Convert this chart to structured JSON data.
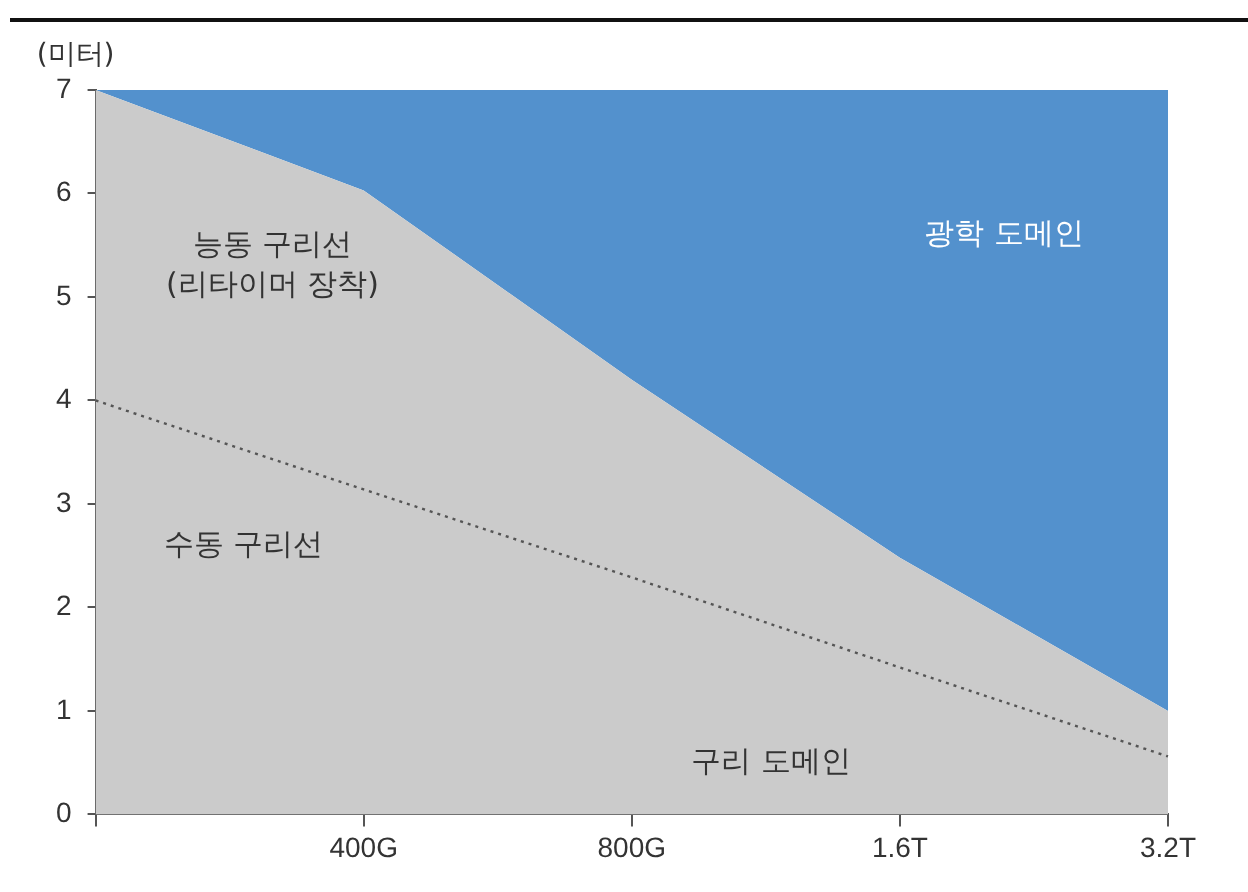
{
  "chart_data": {
    "type": "area",
    "ylabel": "(미터)",
    "categories": [
      null,
      "400G",
      "800G",
      "1.6T",
      "3.2T"
    ],
    "ylim": [
      0,
      7
    ],
    "yticks": [
      0,
      1,
      2,
      3,
      4,
      5,
      6,
      7
    ],
    "grid": false,
    "legend": false,
    "series": [
      {
        "type": "area",
        "color": "#cbcbcb",
        "values": [
          7,
          6.03,
          4.2,
          2.48,
          1.0
        ]
      },
      {
        "type": "area",
        "color": "#5391cd",
        "values": [
          7,
          7,
          7,
          7,
          7
        ]
      },
      {
        "type": "line",
        "color": "#555555",
        "line_style": "dotted",
        "values": [
          4.0,
          3.14,
          2.29,
          1.42,
          0.56
        ]
      }
    ],
    "annotations": [
      "능동 구리선\n(리타이머 장착)",
      "광학 도메인",
      "수동 구리선",
      "구리 도메인"
    ]
  }
}
